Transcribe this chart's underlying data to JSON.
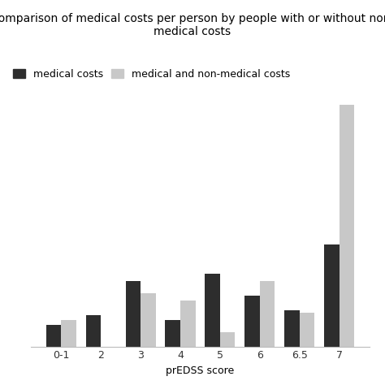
{
  "title": "Comparison of medical costs per person by people with or without non-\nmedical costs",
  "xlabel": "prEDSS score",
  "categories": [
    "0-1",
    "2",
    "3",
    "4",
    "5",
    "6",
    "6.5",
    "7"
  ],
  "medical_costs": [
    9,
    13,
    27,
    11,
    30,
    21,
    15,
    42
  ],
  "medical_nonmedical_costs": [
    11,
    0,
    22,
    19,
    6,
    27,
    14,
    100
  ],
  "bar_color_medical": "#2d2d2d",
  "bar_color_nonmedical": "#c8c8c8",
  "legend_labels": [
    "medical costs",
    "medical and non-medical costs"
  ],
  "bar_width": 0.38,
  "ylim": [
    0,
    105
  ],
  "background_color": "#ffffff",
  "grid_color": "#d8d8d8",
  "title_fontsize": 10,
  "label_fontsize": 9,
  "tick_fontsize": 9,
  "legend_fontsize": 9
}
